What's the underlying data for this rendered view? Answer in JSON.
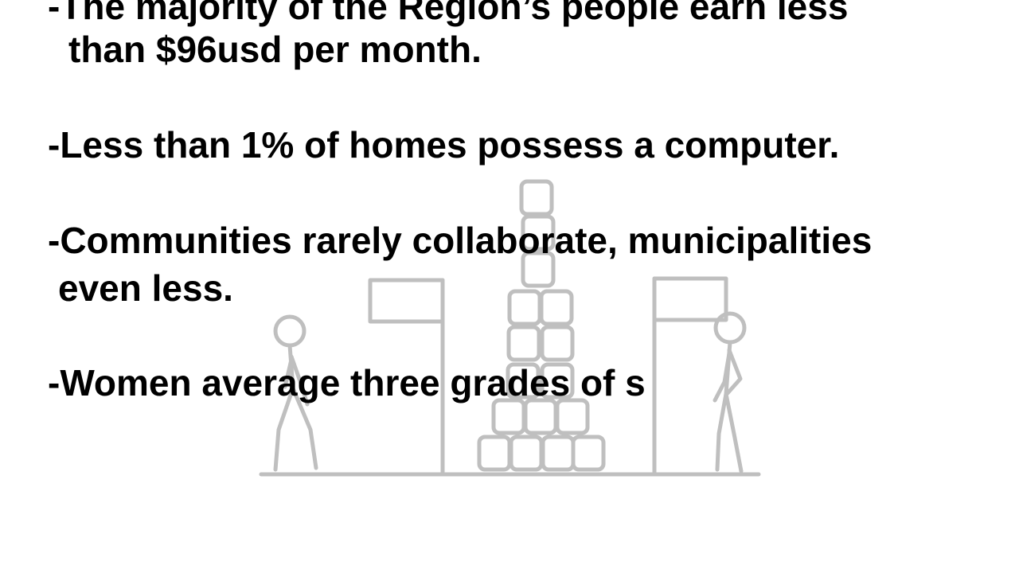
{
  "slide": {
    "bullets": [
      {
        "lines": [
          "-The majority of the Region’s people earn less",
          "than $96usd per month."
        ]
      },
      {
        "lines": [
          "-Less than 1% of homes possess a computer."
        ]
      },
      {
        "lines": [
          "-Communities rarely collaborate, municipalities",
          "even less."
        ]
      },
      {
        "lines": [
          "-Women average three grades of s"
        ]
      }
    ],
    "illustration": {
      "icon": "stick-figures-flags-stacked-blocks-icon",
      "stroke_color": "#bfbfbf"
    }
  }
}
